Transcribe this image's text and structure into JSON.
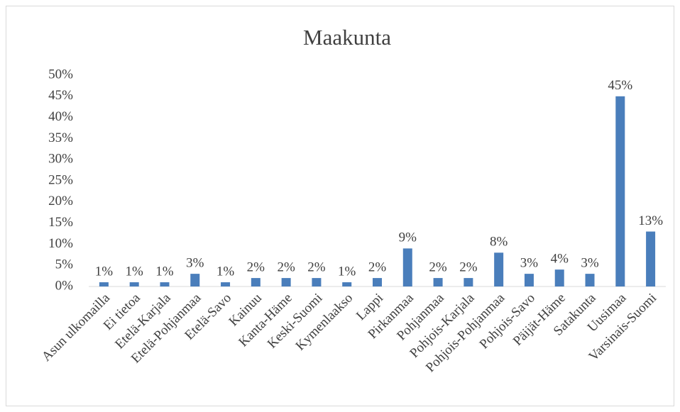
{
  "chart_data": {
    "type": "bar",
    "title": "Maakunta",
    "categories": [
      "Asun ulkomailla",
      "Ei tietoa",
      "Etelä-Karjala",
      "Etelä-Pohjanmaa",
      "Etelä-Savo",
      "Kainuu",
      "Kanta-Häme",
      "Keski-Suomi",
      "Kymenlaakso",
      "Lappi",
      "Pirkanmaa",
      "Pohjanmaa",
      "Pohjois-Karjala",
      "Pohjois-Pohjanmaa",
      "Pohjois-Savo",
      "Päijät-Häme",
      "Satakunta",
      "Uusimaa",
      "Varsinais-Suomi"
    ],
    "values": [
      1,
      1,
      1,
      3,
      1,
      2,
      2,
      2,
      1,
      2,
      9,
      2,
      2,
      8,
      3,
      4,
      3,
      45,
      13
    ],
    "value_labels": [
      "1%",
      "1%",
      "1%",
      "3%",
      "1%",
      "2%",
      "2%",
      "2%",
      "1%",
      "2%",
      "9%",
      "2%",
      "2%",
      "8%",
      "3%",
      "4%",
      "3%",
      "45%",
      "13%"
    ],
    "color": "#4a7ebb",
    "ylim": [
      0,
      50
    ],
    "yticks": [
      {
        "value": 0,
        "label": "0%"
      },
      {
        "value": 5,
        "label": "5%"
      },
      {
        "value": 10,
        "label": "10%"
      },
      {
        "value": 15,
        "label": "15%"
      },
      {
        "value": 20,
        "label": "20%"
      },
      {
        "value": 25,
        "label": "25%"
      },
      {
        "value": 30,
        "label": "30%"
      },
      {
        "value": 35,
        "label": "35%"
      },
      {
        "value": 40,
        "label": "40%"
      },
      {
        "value": 45,
        "label": "45%"
      },
      {
        "value": 50,
        "label": "50%"
      }
    ],
    "grid": false
  }
}
